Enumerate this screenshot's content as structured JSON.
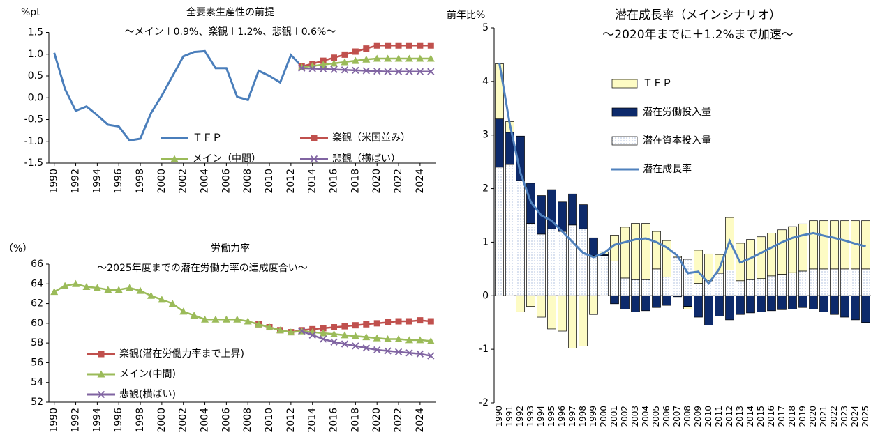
{
  "chart_data": [
    {
      "type": "line",
      "title": "全要素生産性の前提",
      "subtitle": "～メイン＋0.9%、楽観＋1.2%、悲観＋0.6%～",
      "y_label": "%pt",
      "x": [
        1990,
        1991,
        1992,
        1993,
        1994,
        1995,
        1996,
        1997,
        1998,
        1999,
        2000,
        2001,
        2002,
        2003,
        2004,
        2005,
        2006,
        2007,
        2008,
        2009,
        2010,
        2011,
        2012,
        2013,
        2014,
        2015,
        2016,
        2017,
        2018,
        2019,
        2020,
        2021,
        2022,
        2023,
        2024,
        2025
      ],
      "xlim": [
        1989.5,
        2025.5
      ],
      "xticks": [
        1990,
        1992,
        1994,
        1996,
        1998,
        2000,
        2002,
        2004,
        2006,
        2008,
        2010,
        2012,
        2014,
        2016,
        2018,
        2020,
        2022,
        2024
      ],
      "ylim": [
        -1.5,
        1.5
      ],
      "yticks": [
        -1.5,
        {
          "value": -1,
          "label": "-1.0"
        },
        -0.5,
        {
          "value": 0,
          "label": "0.0"
        },
        0.5,
        {
          "value": 1,
          "label": "1.0"
        },
        1.5
      ],
      "legend": "lower right",
      "series": [
        {
          "name": "ＴＦＰ",
          "color": "#4a7ebb",
          "marker": "none",
          "values": [
            1.03,
            0.2,
            -0.3,
            -0.2,
            -0.4,
            -0.62,
            -0.66,
            -0.98,
            -0.94,
            -0.35,
            0.05,
            0.5,
            0.95,
            1.05,
            1.07,
            0.68,
            0.68,
            0.02,
            -0.05,
            0.62,
            0.5,
            0.35,
            0.98,
            0.72,
            null,
            null,
            null,
            null,
            null,
            null,
            null,
            null,
            null,
            null,
            null,
            null
          ]
        },
        {
          "name": "楽観（米国並み）",
          "color": "#c0504d",
          "marker": "square",
          "values": [
            null,
            null,
            null,
            null,
            null,
            null,
            null,
            null,
            null,
            null,
            null,
            null,
            null,
            null,
            null,
            null,
            null,
            null,
            null,
            null,
            null,
            null,
            null,
            0.72,
            0.78,
            0.85,
            0.92,
            0.99,
            1.06,
            1.13,
            1.2,
            1.2,
            1.2,
            1.2,
            1.2,
            1.2
          ]
        },
        {
          "name": "メイン（中間）",
          "color": "#9bbb59",
          "marker": "triangle",
          "values": [
            null,
            null,
            null,
            null,
            null,
            null,
            null,
            null,
            null,
            null,
            null,
            null,
            null,
            null,
            null,
            null,
            null,
            null,
            null,
            null,
            null,
            null,
            null,
            0.7,
            0.73,
            0.76,
            0.79,
            0.82,
            0.85,
            0.88,
            0.9,
            0.9,
            0.9,
            0.9,
            0.9,
            0.9
          ]
        },
        {
          "name": "悲観（横ばい）",
          "color": "#8064a2",
          "marker": "x",
          "values": [
            null,
            null,
            null,
            null,
            null,
            null,
            null,
            null,
            null,
            null,
            null,
            null,
            null,
            null,
            null,
            null,
            null,
            null,
            null,
            null,
            null,
            null,
            null,
            0.68,
            0.67,
            0.66,
            0.65,
            0.64,
            0.63,
            0.62,
            0.61,
            0.6,
            0.6,
            0.6,
            0.6,
            0.6
          ]
        }
      ]
    },
    {
      "type": "line",
      "title": "労働力率",
      "subtitle": "～2025年度までの潜在労働力率の達成度合い～",
      "y_label": "（%）",
      "x": [
        1990,
        1991,
        1992,
        1993,
        1994,
        1995,
        1996,
        1997,
        1998,
        1999,
        2000,
        2001,
        2002,
        2003,
        2004,
        2005,
        2006,
        2007,
        2008,
        2009,
        2010,
        2011,
        2012,
        2013,
        2014,
        2015,
        2016,
        2017,
        2018,
        2019,
        2020,
        2021,
        2022,
        2023,
        2024,
        2025
      ],
      "xlim": [
        1989.5,
        2025.5
      ],
      "xticks": [
        1990,
        1992,
        1994,
        1996,
        1998,
        2000,
        2002,
        2004,
        2006,
        2008,
        2010,
        2012,
        2014,
        2016,
        2018,
        2020,
        2022,
        2024
      ],
      "ylim": [
        52,
        66
      ],
      "yticks": [
        52,
        54,
        56,
        58,
        60,
        62,
        64,
        66
      ],
      "legend": "lower left",
      "series": [
        {
          "name": "楽観(潜在労働力率まで上昇)",
          "color": "#c0504d",
          "marker": "square",
          "values": [
            null,
            null,
            null,
            null,
            null,
            null,
            null,
            null,
            null,
            null,
            null,
            null,
            null,
            null,
            null,
            null,
            null,
            null,
            null,
            59.9,
            59.6,
            59.3,
            59.1,
            59.3,
            59.4,
            59.5,
            59.6,
            59.7,
            59.8,
            59.9,
            60.0,
            60.1,
            60.2,
            60.2,
            60.3,
            60.2
          ]
        },
        {
          "name": "メイン(中間)",
          "color": "#9bbb59",
          "marker": "triangle",
          "values": [
            63.2,
            63.8,
            64.0,
            63.7,
            63.6,
            63.4,
            63.4,
            63.6,
            63.3,
            62.8,
            62.4,
            62.0,
            61.2,
            60.8,
            60.4,
            60.4,
            60.4,
            60.4,
            60.2,
            59.9,
            59.6,
            59.3,
            59.1,
            59.2,
            59.1,
            59.0,
            58.9,
            58.8,
            58.7,
            58.6,
            58.5,
            58.4,
            58.4,
            58.3,
            58.3,
            58.2
          ]
        },
        {
          "name": "悲観(横ばい)",
          "color": "#8064a2",
          "marker": "x",
          "values": [
            null,
            null,
            null,
            null,
            null,
            null,
            null,
            null,
            null,
            null,
            null,
            null,
            null,
            null,
            null,
            null,
            null,
            null,
            null,
            null,
            null,
            null,
            null,
            59.2,
            58.8,
            58.4,
            58.1,
            57.9,
            57.7,
            57.5,
            57.3,
            57.2,
            57.1,
            57.0,
            56.9,
            56.7
          ]
        }
      ]
    },
    {
      "type": "bar",
      "stacked": true,
      "title": "潜在成長率（メインシナリオ）",
      "subtitle": "～2020年までに＋1.2%まで加速～",
      "y_label": "前年比%",
      "categories": [
        "1990",
        "1991",
        "1992",
        "1993",
        "1994",
        "1995",
        "1996",
        "1997",
        "1998",
        "1999",
        "2000",
        "2001",
        "2002",
        "2003",
        "2004",
        "2005",
        "2006",
        "2007",
        "2008",
        "2009",
        "2010",
        "2011",
        "2012",
        "2013",
        "2014",
        "2015",
        "2016",
        "2017",
        "2018",
        "2019",
        "2020",
        "2021",
        "2022",
        "2023",
        "2024",
        "2025"
      ],
      "ylim": [
        -2,
        5
      ],
      "yticks": [
        -2,
        -1,
        0,
        1,
        2,
        3,
        4,
        5
      ],
      "legend": "upper right",
      "series": [
        {
          "name": "ＴＦＰ",
          "color": "#fdfbc4",
          "values": [
            1.03,
            0.2,
            -0.3,
            -0.2,
            -0.4,
            -0.62,
            -0.66,
            -0.98,
            -0.94,
            -0.35,
            0.05,
            0.48,
            0.95,
            1.05,
            1.05,
            0.7,
            0.68,
            0.02,
            -0.05,
            0.62,
            0.5,
            0.35,
            0.98,
            0.7,
            0.75,
            0.78,
            0.8,
            0.83,
            0.86,
            0.88,
            0.9,
            0.9,
            0.9,
            0.9,
            0.9,
            0.9
          ]
        },
        {
          "name": "潜在労働投入量",
          "color": "#0d2a6b",
          "values": [
            0.9,
            0.6,
            0.83,
            0.75,
            0.72,
            0.73,
            0.55,
            0.58,
            0.45,
            0.33,
            0.02,
            -0.15,
            -0.25,
            -0.3,
            -0.28,
            -0.22,
            -0.18,
            -0.02,
            -0.2,
            -0.4,
            -0.55,
            -0.38,
            -0.45,
            -0.35,
            -0.32,
            -0.3,
            -0.28,
            -0.26,
            -0.25,
            -0.22,
            -0.25,
            -0.3,
            -0.35,
            -0.4,
            -0.45,
            -0.5
          ]
        },
        {
          "name": "潜在資本投入量",
          "color": "#ffffff",
          "pattern": "dots",
          "values": [
            2.4,
            2.45,
            2.15,
            1.35,
            1.15,
            1.25,
            1.2,
            1.32,
            1.25,
            0.75,
            0.75,
            0.65,
            0.33,
            0.3,
            0.3,
            0.5,
            0.35,
            0.72,
            0.68,
            0.23,
            0.28,
            0.42,
            0.48,
            0.28,
            0.3,
            0.32,
            0.37,
            0.4,
            0.43,
            0.46,
            0.5,
            0.5,
            0.5,
            0.5,
            0.5,
            0.5
          ]
        },
        {
          "name": "潜在成長率",
          "type": "line",
          "color": "#4f81bd",
          "values": [
            4.35,
            3.2,
            2.3,
            1.75,
            1.5,
            1.4,
            1.2,
            1.0,
            0.8,
            0.72,
            0.8,
            0.95,
            1.0,
            1.05,
            1.07,
            1.0,
            0.9,
            0.75,
            0.42,
            0.45,
            0.23,
            0.5,
            1.02,
            0.62,
            0.7,
            0.8,
            0.9,
            1.0,
            1.08,
            1.13,
            1.17,
            1.12,
            1.08,
            1.03,
            0.97,
            0.92
          ]
        }
      ]
    }
  ]
}
